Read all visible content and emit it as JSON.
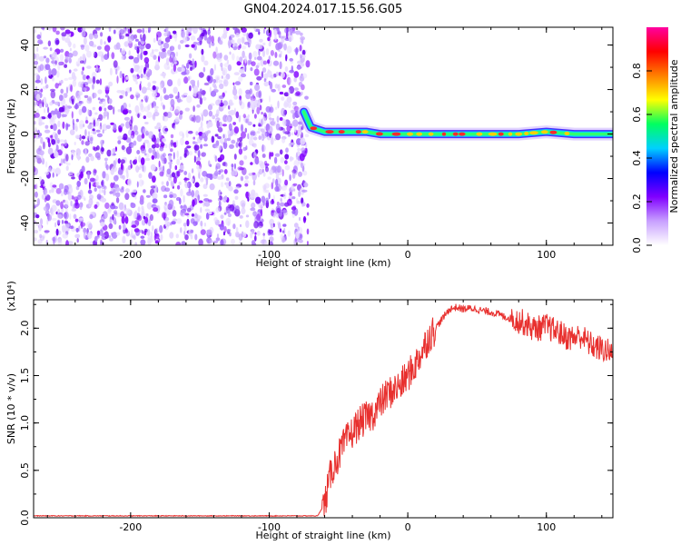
{
  "page_title": "GN04.2024.017.15.56.G05",
  "chart_data": [
    {
      "type": "heatmap",
      "xlabel": "Height of straight line (km)",
      "ylabel": "Frequency (Hz)",
      "xlim": [
        -270,
        148
      ],
      "ylim": [
        -50,
        48
      ],
      "xticks": [
        -200,
        -100,
        0,
        100
      ],
      "yticks": [
        -40,
        -20,
        0,
        20,
        40
      ],
      "noise_region_end_x": -72,
      "signal_trace": {
        "x": [
          -75,
          -70,
          -65,
          -60,
          -50,
          -40,
          -30,
          -20,
          -10,
          0,
          20,
          40,
          60,
          80,
          100,
          120,
          148
        ],
        "y": [
          10,
          3,
          2,
          1,
          1,
          1,
          1,
          0,
          0,
          0,
          0,
          0,
          0,
          0,
          1,
          0,
          0
        ]
      },
      "colorbar": {
        "label": "Normalized spectral amplitude",
        "range": [
          0,
          1
        ],
        "ticks": [
          0.0,
          0.2,
          0.4,
          0.6,
          0.8
        ],
        "colors": [
          "#ffffff",
          "#c8a0ff",
          "#8000ff",
          "#0000ff",
          "#00d0ff",
          "#00ff60",
          "#ffff00",
          "#ff8000",
          "#ff0000",
          "#ff00a0"
        ]
      }
    },
    {
      "type": "line",
      "xlabel": "Height of straight line (km)",
      "ylabel": "SNR (10 * v/v)",
      "scale_label": "(x10⁴)",
      "xlim": [
        -270,
        148
      ],
      "ylim": [
        0,
        2.3
      ],
      "xticks": [
        -200,
        -100,
        0,
        100
      ],
      "yticks": [
        0.0,
        0.5,
        1.0,
        1.5,
        2.0
      ],
      "color": "#e8302e",
      "series": [
        {
          "x": [
            -270,
            -200,
            -100,
            -65,
            -60,
            -55,
            -50,
            -45,
            -40,
            -35,
            -30,
            -25,
            -20,
            -15,
            -10,
            -5,
            0,
            5,
            10,
            15,
            20,
            25,
            30,
            35,
            40,
            45,
            50,
            55,
            60,
            65,
            70,
            75,
            80,
            85,
            90,
            95,
            100,
            105,
            110,
            115,
            120,
            125,
            130,
            135,
            140,
            145,
            148
          ],
          "y": [
            0.02,
            0.02,
            0.02,
            0.02,
            0.15,
            0.5,
            0.65,
            0.8,
            0.9,
            1.0,
            1.05,
            1.1,
            1.2,
            1.3,
            1.35,
            1.4,
            1.5,
            1.6,
            1.75,
            1.9,
            2.0,
            2.1,
            2.2,
            2.22,
            2.2,
            2.21,
            2.2,
            2.18,
            2.17,
            2.15,
            2.12,
            2.1,
            2.08,
            2.05,
            2.0,
            2.0,
            2.02,
            1.98,
            1.95,
            1.9,
            1.9,
            1.92,
            1.85,
            1.8,
            1.78,
            1.75,
            1.7
          ]
        }
      ]
    }
  ]
}
